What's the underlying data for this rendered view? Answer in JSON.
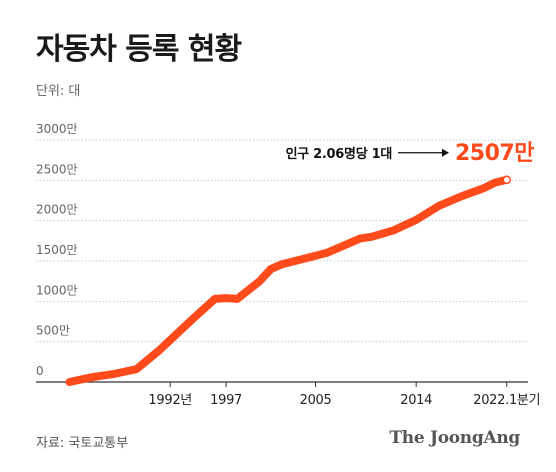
{
  "title": "자동차 등록 현황",
  "unit_label": "단위: 대",
  "source": "자료: 국토교통부",
  "credit": "The JoongAng",
  "colors": {
    "line": "#ff4a1c",
    "grid": "#c8c8c8",
    "axis": "#333333",
    "annotation_value": "#ff4a1c"
  },
  "chart_data": {
    "type": "line",
    "title": "자동차 등록 현황",
    "ylabel": "단위: 대",
    "ylim": [
      0,
      3000
    ],
    "y_ticks": [
      0,
      500,
      1000,
      1500,
      2000,
      2500,
      3000
    ],
    "y_tick_labels": [
      "0",
      "500만",
      "1000만",
      "1500만",
      "2000만",
      "2500만",
      "3000만"
    ],
    "xlim": [
      1980,
      2024
    ],
    "x_ticks": [
      1992,
      1997,
      2005,
      2014,
      2022.1
    ],
    "x_tick_labels": [
      "1992년",
      "1997",
      "2005",
      "2014",
      "2022.1분기"
    ],
    "grid": true,
    "series": [
      {
        "x": [
          1983,
          1985,
          1987,
          1989,
          1991,
          1992,
          1994,
          1996,
          1997,
          1998,
          2000,
          2001,
          2002,
          2004,
          2006,
          2008,
          2009,
          2010,
          2012,
          2014,
          2016,
          2018,
          2020,
          2021,
          2022.1
        ],
        "y": [
          0,
          60,
          100,
          160,
          390,
          520,
          780,
          1030,
          1040,
          1030,
          1250,
          1400,
          1460,
          1530,
          1600,
          1720,
          1780,
          1800,
          1880,
          2010,
          2180,
          2300,
          2400,
          2470,
          2507
        ]
      }
    ],
    "annotation": {
      "text": "인구 2.06명당 1대",
      "value_label": "2507만",
      "x": 2022.1,
      "y": 2507
    }
  }
}
